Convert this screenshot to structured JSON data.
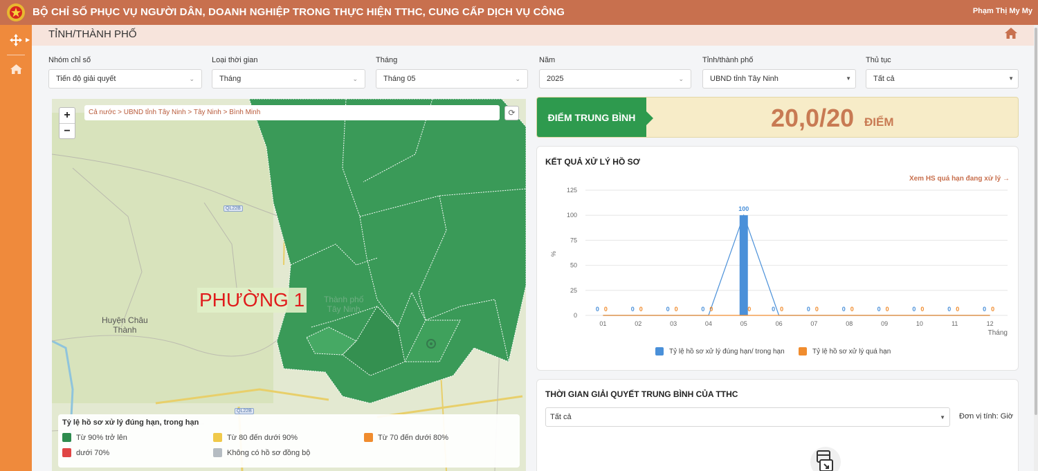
{
  "header": {
    "title": "BỘ CHỈ SỐ PHỤC VỤ NGƯỜI DÂN, DOANH NGHIỆP TRONG THỰC HIỆN TTHC, CUNG CẤP DỊCH VỤ CÔNG",
    "user": "Phạm Thị My My"
  },
  "subheader": {
    "title": "TỈNH/THÀNH PHỐ"
  },
  "filters": [
    {
      "label": "Nhóm chỉ số",
      "value": "Tiến độ giải quyết"
    },
    {
      "label": "Loại thời gian",
      "value": "Tháng"
    },
    {
      "label": "Tháng",
      "value": "Tháng 05"
    },
    {
      "label": "Năm",
      "value": "2025"
    },
    {
      "label": "Tỉnh/thành phố",
      "value": "UBND tỉnh Tây Ninh"
    },
    {
      "label": "Thủ tục",
      "value": "Tất cả"
    }
  ],
  "map": {
    "zoom_in": "+",
    "zoom_out": "−",
    "breadcrumb": "Cả nước > UBND tỉnh Tây Ninh > Tây Ninh > Bình Minh",
    "highlight_label": "PHƯỜNG 1",
    "place_labels": {
      "chau_thanh_1": "Huyện Châu",
      "chau_thanh_2": "Thành",
      "city_1": "Thành phố",
      "city_2": "Tây Ninh"
    },
    "road_labels": {
      "r1": "QL22B",
      "r2": "QL22B"
    },
    "legend": {
      "title": "Tỷ lệ hồ sơ xử lý đúng hạn, trong hạn",
      "items": [
        {
          "label": "Từ 90% trở lên",
          "color": "#2e8b4e"
        },
        {
          "label": "Từ 80 đến dưới 90%",
          "color": "#f0c94a"
        },
        {
          "label": "Từ 70 đến dưới 80%",
          "color": "#f08c2e"
        },
        {
          "label": "dưới 70%",
          "color": "#e04545"
        },
        {
          "label": "Không có hồ sơ đồng bộ",
          "color": "#b5bcc2"
        }
      ]
    }
  },
  "score": {
    "label": "ĐIỂM TRUNG BÌNH",
    "value": "20,0/20",
    "unit": "ĐIỂM"
  },
  "result_card": {
    "title": "KẾT QUẢ XỬ LÝ HỒ SƠ",
    "link": "Xem HS quá hạn đang xử lý →"
  },
  "chart_data": {
    "type": "bar",
    "categories": [
      "01",
      "02",
      "03",
      "04",
      "05",
      "06",
      "07",
      "08",
      "09",
      "10",
      "11",
      "12"
    ],
    "xlabel": "Tháng",
    "ylabel": "%",
    "ylim": [
      0,
      125
    ],
    "yticks": [
      0,
      25,
      50,
      75,
      100,
      125
    ],
    "grid": true,
    "legend_position": "bottom",
    "series": [
      {
        "name": "Tỷ lệ hồ sơ xử lý đúng hạn/ trong hạn",
        "values": [
          0,
          0,
          0,
          0,
          100,
          0,
          0,
          0,
          0,
          0,
          0,
          0
        ],
        "color": "#4a90d9"
      },
      {
        "name": "Tỷ lệ hồ sơ xử lý quá hạn",
        "values": [
          0,
          0,
          0,
          0,
          0,
          0,
          0,
          0,
          0,
          0,
          0,
          0
        ],
        "color": "#f08c2e"
      }
    ]
  },
  "time_card": {
    "title": "THỜI GIAN GIẢI QUYẾT TRUNG BÌNH CỦA TTHC",
    "select_value": "Tất cả",
    "unit_label": "Đơn vị tính: Giờ"
  }
}
